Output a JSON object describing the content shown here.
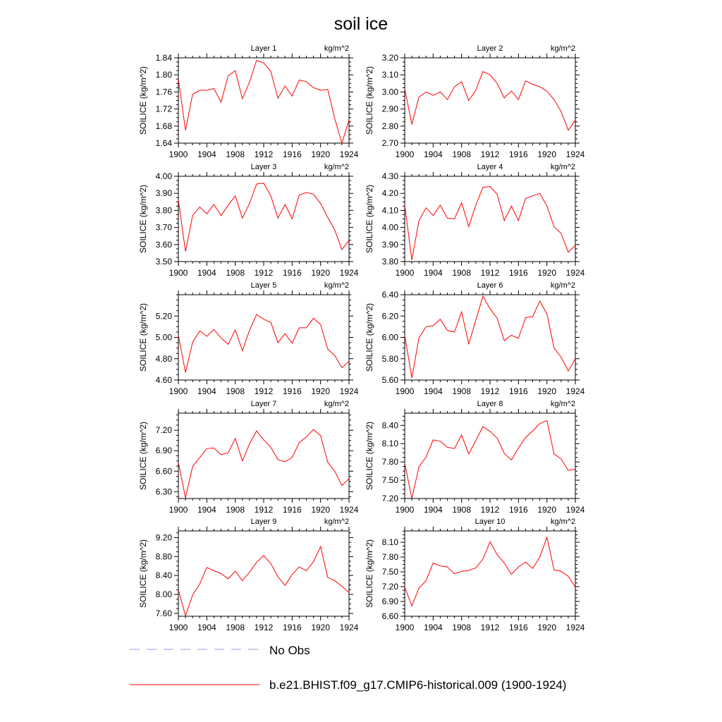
{
  "title": "soil ice",
  "units_label": "kg/m^2",
  "ylabel": "SOILICE  (kg/m^2)",
  "legend": {
    "obs_label": "No Obs",
    "obs_color": "#9999ee",
    "model_label": "b.e21.BHIST.f09_g17.CMIP6-historical.009 (1900-1924)",
    "model_color": "#ff0000"
  },
  "chart_data": [
    {
      "type": "line",
      "title": "Layer 1",
      "xlim": [
        1900,
        1924
      ],
      "xticks": [
        1900,
        1904,
        1908,
        1912,
        1916,
        1920,
        1924
      ],
      "ylim": [
        1.64,
        1.84
      ],
      "yticks": [
        1.64,
        1.68,
        1.72,
        1.76,
        1.8,
        1.84
      ],
      "ydecimals": 2,
      "series": [
        {
          "x": [
            1900,
            1901,
            1902,
            1903,
            1904,
            1905,
            1906,
            1907,
            1908,
            1909,
            1910,
            1911,
            1912,
            1913,
            1914,
            1915,
            1916,
            1917,
            1918,
            1919,
            1920,
            1921,
            1922,
            1923,
            1924
          ],
          "values": [
            1.79,
            1.67,
            1.755,
            1.764,
            1.764,
            1.768,
            1.736,
            1.798,
            1.81,
            1.744,
            1.783,
            1.834,
            1.828,
            1.808,
            1.745,
            1.774,
            1.75,
            1.788,
            1.784,
            1.77,
            1.764,
            1.766,
            1.697,
            1.64,
            1.694
          ]
        }
      ]
    },
    {
      "type": "line",
      "title": "Layer 2",
      "xlim": [
        1900,
        1924
      ],
      "xticks": [
        1900,
        1904,
        1908,
        1912,
        1916,
        1920,
        1924
      ],
      "ylim": [
        2.7,
        3.2
      ],
      "yticks": [
        2.7,
        2.8,
        2.9,
        3.0,
        3.1,
        3.2
      ],
      "ydecimals": 2,
      "series": [
        {
          "x": [
            1900,
            1901,
            1902,
            1903,
            1904,
            1905,
            1906,
            1907,
            1908,
            1909,
            1910,
            1911,
            1912,
            1913,
            1914,
            1915,
            1916,
            1917,
            1918,
            1919,
            1920,
            1921,
            1922,
            1923,
            1924
          ],
          "values": [
            3.02,
            2.81,
            2.97,
            3.0,
            2.98,
            3.0,
            2.955,
            3.03,
            3.06,
            2.95,
            3.01,
            3.12,
            3.1,
            3.05,
            2.965,
            3.005,
            2.955,
            3.065,
            3.045,
            3.03,
            3.005,
            2.955,
            2.885,
            2.775,
            2.835
          ]
        }
      ]
    },
    {
      "type": "line",
      "title": "Layer 3",
      "xlim": [
        1900,
        1924
      ],
      "xticks": [
        1900,
        1904,
        1908,
        1912,
        1916,
        1920,
        1924
      ],
      "ylim": [
        3.5,
        4.0
      ],
      "yticks": [
        3.5,
        3.6,
        3.7,
        3.8,
        3.9,
        4.0
      ],
      "ydecimals": 2,
      "series": [
        {
          "x": [
            1900,
            1901,
            1902,
            1903,
            1904,
            1905,
            1906,
            1907,
            1908,
            1909,
            1910,
            1911,
            1912,
            1913,
            1914,
            1915,
            1916,
            1917,
            1918,
            1919,
            1920,
            1921,
            1922,
            1923,
            1924
          ],
          "values": [
            3.86,
            3.56,
            3.77,
            3.82,
            3.78,
            3.835,
            3.77,
            3.83,
            3.885,
            3.755,
            3.84,
            3.955,
            3.96,
            3.885,
            3.755,
            3.835,
            3.75,
            3.89,
            3.905,
            3.895,
            3.84,
            3.76,
            3.685,
            3.57,
            3.625
          ]
        }
      ]
    },
    {
      "type": "line",
      "title": "Layer 4",
      "xlim": [
        1900,
        1924
      ],
      "xticks": [
        1900,
        1904,
        1908,
        1912,
        1916,
        1920,
        1924
      ],
      "ylim": [
        3.8,
        4.3
      ],
      "yticks": [
        3.8,
        3.9,
        4.0,
        4.1,
        4.2,
        4.3
      ],
      "ydecimals": 2,
      "series": [
        {
          "x": [
            1900,
            1901,
            1902,
            1903,
            1904,
            1905,
            1906,
            1907,
            1908,
            1909,
            1910,
            1911,
            1912,
            1913,
            1914,
            1915,
            1916,
            1917,
            1918,
            1919,
            1920,
            1921,
            1922,
            1923,
            1924
          ],
          "values": [
            4.13,
            3.81,
            4.04,
            4.115,
            4.07,
            4.13,
            4.055,
            4.05,
            4.145,
            4.005,
            4.13,
            4.235,
            4.24,
            4.195,
            4.04,
            4.125,
            4.04,
            4.17,
            4.185,
            4.2,
            4.125,
            4.005,
            3.965,
            3.855,
            3.895
          ]
        }
      ]
    },
    {
      "type": "line",
      "title": "Layer 5",
      "xlim": [
        1900,
        1924
      ],
      "xticks": [
        1900,
        1904,
        1908,
        1912,
        1916,
        1920,
        1924
      ],
      "ylim": [
        4.6,
        5.4
      ],
      "yticks": [
        4.6,
        4.8,
        5.0,
        5.2
      ],
      "ydecimals": 2,
      "series": [
        {
          "x": [
            1900,
            1901,
            1902,
            1903,
            1904,
            1905,
            1906,
            1907,
            1908,
            1909,
            1910,
            1911,
            1912,
            1913,
            1914,
            1915,
            1916,
            1917,
            1918,
            1919,
            1920,
            1921,
            1922,
            1923,
            1924
          ],
          "values": [
            5.02,
            4.67,
            4.955,
            5.06,
            5.01,
            5.075,
            4.995,
            4.935,
            5.07,
            4.875,
            5.065,
            5.215,
            5.17,
            5.14,
            4.95,
            5.035,
            4.945,
            5.09,
            5.09,
            5.18,
            5.12,
            4.89,
            4.83,
            4.715,
            4.775
          ]
        }
      ]
    },
    {
      "type": "line",
      "title": "Layer 6",
      "xlim": [
        1900,
        1924
      ],
      "xticks": [
        1900,
        1904,
        1908,
        1912,
        1916,
        1920,
        1924
      ],
      "ylim": [
        5.6,
        6.4
      ],
      "yticks": [
        5.6,
        5.8,
        6.0,
        6.2,
        6.4
      ],
      "ydecimals": 2,
      "series": [
        {
          "x": [
            1900,
            1901,
            1902,
            1903,
            1904,
            1905,
            1906,
            1907,
            1908,
            1909,
            1910,
            1911,
            1912,
            1913,
            1914,
            1915,
            1916,
            1917,
            1918,
            1919,
            1920,
            1921,
            1922,
            1923,
            1924
          ],
          "values": [
            6.02,
            5.62,
            5.995,
            6.1,
            6.11,
            6.17,
            6.065,
            6.05,
            6.24,
            5.94,
            6.16,
            6.385,
            6.27,
            6.18,
            5.97,
            6.02,
            5.99,
            6.185,
            6.195,
            6.34,
            6.22,
            5.9,
            5.815,
            5.685,
            5.8
          ]
        }
      ]
    },
    {
      "type": "line",
      "title": "Layer 7",
      "xlim": [
        1900,
        1924
      ],
      "xticks": [
        1900,
        1904,
        1908,
        1912,
        1916,
        1920,
        1924
      ],
      "ylim": [
        6.2,
        7.45
      ],
      "yticks": [
        6.3,
        6.6,
        6.9,
        7.2
      ],
      "ydecimals": 2,
      "series": [
        {
          "x": [
            1900,
            1901,
            1902,
            1903,
            1904,
            1905,
            1906,
            1907,
            1908,
            1909,
            1910,
            1911,
            1912,
            1913,
            1914,
            1915,
            1916,
            1917,
            1918,
            1919,
            1920,
            1921,
            1922,
            1923,
            1924
          ],
          "values": [
            6.73,
            6.21,
            6.67,
            6.8,
            6.93,
            6.94,
            6.84,
            6.87,
            7.08,
            6.75,
            7.0,
            7.19,
            7.06,
            6.95,
            6.77,
            6.74,
            6.8,
            7.02,
            7.1,
            7.21,
            7.12,
            6.73,
            6.6,
            6.39,
            6.49
          ]
        }
      ]
    },
    {
      "type": "line",
      "title": "Layer 8",
      "xlim": [
        1900,
        1924
      ],
      "xticks": [
        1900,
        1904,
        1908,
        1912,
        1916,
        1920,
        1924
      ],
      "ylim": [
        7.2,
        8.6
      ],
      "yticks": [
        7.2,
        7.5,
        7.8,
        8.1,
        8.4
      ],
      "ydecimals": 2,
      "series": [
        {
          "x": [
            1900,
            1901,
            1902,
            1903,
            1904,
            1905,
            1906,
            1907,
            1908,
            1909,
            1910,
            1911,
            1912,
            1913,
            1914,
            1915,
            1916,
            1917,
            1918,
            1919,
            1920,
            1921,
            1922,
            1923,
            1924
          ],
          "values": [
            7.78,
            7.2,
            7.72,
            7.88,
            8.16,
            8.14,
            8.04,
            8.02,
            8.24,
            7.93,
            8.15,
            8.38,
            8.3,
            8.19,
            7.94,
            7.83,
            8.03,
            8.2,
            8.31,
            8.43,
            8.48,
            7.93,
            7.85,
            7.66,
            7.68
          ]
        }
      ]
    },
    {
      "type": "line",
      "title": "Layer 9",
      "xlim": [
        1900,
        1924
      ],
      "xticks": [
        1900,
        1904,
        1908,
        1912,
        1916,
        1920,
        1924
      ],
      "ylim": [
        7.54,
        9.34
      ],
      "yticks": [
        7.6,
        8.0,
        8.4,
        8.8,
        9.2
      ],
      "ydecimals": 2,
      "series": [
        {
          "x": [
            1900,
            1901,
            1902,
            1903,
            1904,
            1905,
            1906,
            1907,
            1908,
            1909,
            1910,
            1911,
            1912,
            1913,
            1914,
            1915,
            1916,
            1917,
            1918,
            1919,
            1920,
            1921,
            1922,
            1923,
            1924
          ],
          "values": [
            8.1,
            7.55,
            7.99,
            8.22,
            8.57,
            8.5,
            8.44,
            8.33,
            8.49,
            8.29,
            8.47,
            8.68,
            8.82,
            8.65,
            8.37,
            8.19,
            8.42,
            8.58,
            8.5,
            8.69,
            9.01,
            8.36,
            8.29,
            8.17,
            8.04
          ]
        }
      ]
    },
    {
      "type": "line",
      "title": "Layer 10",
      "xlim": [
        1900,
        1924
      ],
      "xticks": [
        1900,
        1904,
        1908,
        1912,
        1916,
        1920,
        1924
      ],
      "ylim": [
        6.6,
        8.33
      ],
      "yticks": [
        6.6,
        6.9,
        7.2,
        7.5,
        7.8,
        8.1
      ],
      "ydecimals": 2,
      "series": [
        {
          "x": [
            1900,
            1901,
            1902,
            1903,
            1904,
            1905,
            1906,
            1907,
            1908,
            1909,
            1910,
            1911,
            1912,
            1913,
            1914,
            1915,
            1916,
            1917,
            1918,
            1919,
            1920,
            1921,
            1922,
            1923,
            1924
          ],
          "values": [
            7.19,
            6.81,
            7.17,
            7.32,
            7.68,
            7.62,
            7.6,
            7.46,
            7.51,
            7.53,
            7.58,
            7.76,
            8.11,
            7.85,
            7.68,
            7.45,
            7.6,
            7.7,
            7.57,
            7.8,
            8.2,
            7.54,
            7.51,
            7.41,
            7.19
          ]
        }
      ]
    }
  ]
}
